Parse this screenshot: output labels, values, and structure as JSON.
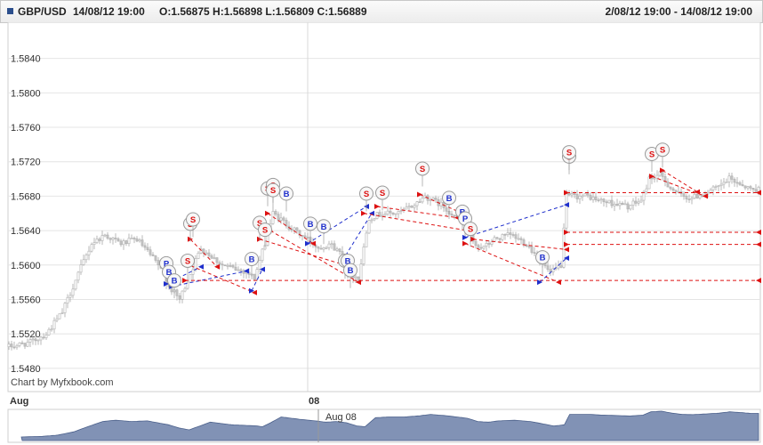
{
  "header": {
    "symbol": "GBP/USD",
    "timestamp": "14/08/12 19:00",
    "ohlc": "O:1.56875 H:1.56898 L:1.56809 C:1.56889",
    "range": "2/08/12 19:00 - 14/08/12 19:00"
  },
  "credit": "Chart by Myfxbook.com",
  "navigator": {
    "label": "Aug 08"
  },
  "colors": {
    "buy": "#1f2fcc",
    "sell": "#dd1111",
    "candle": "#b8b8b8",
    "nav_fill": "#6b7fa8"
  },
  "chart_data": {
    "type": "candlestick",
    "ylim": [
      1.5455,
      1.588
    ],
    "yticks": [
      "1.5480",
      "1.5520",
      "1.5560",
      "1.5600",
      "1.5640",
      "1.5680",
      "1.5720",
      "1.5760",
      "1.5800",
      "1.5840"
    ],
    "ytick_values": [
      1.548,
      1.552,
      1.556,
      1.56,
      1.564,
      1.568,
      1.572,
      1.576,
      1.58,
      1.584
    ],
    "xticks": [
      {
        "label": "Aug",
        "index": 0
      },
      {
        "label": "08",
        "index": 112
      }
    ],
    "count": 282,
    "anchors": [
      [
        0,
        1.5505
      ],
      [
        8,
        1.551
      ],
      [
        14,
        1.552
      ],
      [
        20,
        1.5545
      ],
      [
        26,
        1.559
      ],
      [
        31,
        1.5625
      ],
      [
        36,
        1.5635
      ],
      [
        42,
        1.5625
      ],
      [
        48,
        1.563
      ],
      [
        52,
        1.5615
      ],
      [
        56,
        1.56
      ],
      [
        60,
        1.5575
      ],
      [
        64,
        1.556
      ],
      [
        68,
        1.559
      ],
      [
        72,
        1.562
      ],
      [
        76,
        1.561
      ],
      [
        80,
        1.56
      ],
      [
        85,
        1.5595
      ],
      [
        89,
        1.5592
      ],
      [
        92,
        1.5585
      ],
      [
        95,
        1.5615
      ],
      [
        99,
        1.566
      ],
      [
        103,
        1.565
      ],
      [
        107,
        1.564
      ],
      [
        112,
        1.563
      ],
      [
        116,
        1.562
      ],
      [
        120,
        1.5625
      ],
      [
        124,
        1.5615
      ],
      [
        128,
        1.559
      ],
      [
        131,
        1.5585
      ],
      [
        135,
        1.5655
      ],
      [
        140,
        1.566
      ],
      [
        146,
        1.566
      ],
      [
        152,
        1.567
      ],
      [
        156,
        1.568
      ],
      [
        162,
        1.567
      ],
      [
        166,
        1.566
      ],
      [
        170,
        1.565
      ],
      [
        174,
        1.5625
      ],
      [
        178,
        1.562
      ],
      [
        182,
        1.563
      ],
      [
        188,
        1.5635
      ],
      [
        194,
        1.5625
      ],
      [
        198,
        1.561
      ],
      [
        203,
        1.559
      ],
      [
        207,
        1.56
      ],
      [
        209,
        1.568
      ],
      [
        213,
        1.568
      ],
      [
        217,
        1.568
      ],
      [
        221,
        1.5675
      ],
      [
        226,
        1.5672
      ],
      [
        232,
        1.5668
      ],
      [
        237,
        1.5675
      ],
      [
        240,
        1.57
      ],
      [
        244,
        1.5705
      ],
      [
        248,
        1.569
      ],
      [
        252,
        1.568
      ],
      [
        256,
        1.5678
      ],
      [
        262,
        1.5685
      ],
      [
        266,
        1.569
      ],
      [
        270,
        1.57
      ],
      [
        274,
        1.5695
      ],
      [
        278,
        1.5688
      ],
      [
        281,
        1.5688
      ]
    ],
    "volatility": 0.0009,
    "trades": [
      {
        "side": "B",
        "i0": 61,
        "p0": 1.5575,
        "i1": 89,
        "p1": 1.5593
      },
      {
        "side": "P",
        "i0": 59,
        "p0": 1.5578,
        "i1": 72,
        "p1": 1.5598
      },
      {
        "side": "S",
        "i0": 68,
        "p0": 1.563,
        "i1": 78,
        "p1": 1.5598
      },
      {
        "side": "S",
        "i0": 66,
        "p0": 1.5602,
        "i1": 92,
        "p1": 1.5568
      },
      {
        "side": "S",
        "i0": 66,
        "p0": 1.5582,
        "i1": 281,
        "p1": 1.5582
      },
      {
        "side": "B",
        "i0": 91,
        "p0": 1.557,
        "i1": 95,
        "p1": 1.5595
      },
      {
        "side": "S",
        "i0": 97,
        "p0": 1.566,
        "i1": 114,
        "p1": 1.5625
      },
      {
        "side": "S",
        "i0": 94,
        "p0": 1.563,
        "i1": 128,
        "p1": 1.5598
      },
      {
        "side": "S",
        "i0": 98,
        "p0": 1.564,
        "i1": 131,
        "p1": 1.558
      },
      {
        "side": "B",
        "i0": 112,
        "p0": 1.5625,
        "i1": 134,
        "p1": 1.5668
      },
      {
        "side": "B",
        "i0": 125,
        "p0": 1.5605,
        "i1": 136,
        "p1": 1.566
      },
      {
        "side": "S",
        "i0": 133,
        "p0": 1.566,
        "i1": 172,
        "p1": 1.564
      },
      {
        "side": "S",
        "i0": 138,
        "p0": 1.5668,
        "i1": 168,
        "p1": 1.5655
      },
      {
        "side": "S",
        "i0": 154,
        "p0": 1.5682,
        "i1": 170,
        "p1": 1.566
      },
      {
        "side": "B",
        "i0": 171,
        "p0": 1.5632,
        "i1": 209,
        "p1": 1.567
      },
      {
        "side": "S",
        "i0": 171,
        "p0": 1.5625,
        "i1": 206,
        "p1": 1.558
      },
      {
        "side": "S",
        "i0": 174,
        "p0": 1.563,
        "i1": 209,
        "p1": 1.5618
      },
      {
        "side": "B",
        "i0": 199,
        "p0": 1.558,
        "i1": 209,
        "p1": 1.5608
      },
      {
        "side": "S",
        "i0": 209,
        "p0": 1.5638,
        "i1": 281,
        "p1": 1.5638
      },
      {
        "side": "S",
        "i0": 209,
        "p0": 1.5624,
        "i1": 281,
        "p1": 1.5624
      },
      {
        "side": "S",
        "i0": 209,
        "p0": 1.5684,
        "i1": 281,
        "p1": 1.5684
      },
      {
        "side": "S",
        "i0": 241,
        "p0": 1.5703,
        "i1": 261,
        "p1": 1.568
      },
      {
        "side": "S",
        "i0": 245,
        "p0": 1.571,
        "i1": 258,
        "p1": 1.5685
      }
    ],
    "markers": [
      {
        "side": "P",
        "i": 59,
        "p": 1.5602
      },
      {
        "side": "B",
        "i": 60,
        "p": 1.5592
      },
      {
        "side": "B",
        "i": 62,
        "p": 1.5582
      },
      {
        "side": "S",
        "i": 68,
        "p": 1.5648
      },
      {
        "side": "S",
        "i": 69,
        "p": 1.5653
      },
      {
        "side": "S",
        "i": 67,
        "p": 1.5605
      },
      {
        "side": "B",
        "i": 91,
        "p": 1.5607
      },
      {
        "side": "S",
        "i": 94,
        "p": 1.5649
      },
      {
        "side": "S",
        "i": 96,
        "p": 1.5641
      },
      {
        "side": "S",
        "i": 97,
        "p": 1.5689
      },
      {
        "side": "S",
        "i": 99,
        "p": 1.5693
      },
      {
        "side": "S",
        "i": 99,
        "p": 1.5687
      },
      {
        "side": "B",
        "i": 104,
        "p": 1.5683
      },
      {
        "side": "B",
        "i": 113,
        "p": 1.5648
      },
      {
        "side": "B",
        "i": 118,
        "p": 1.5645
      },
      {
        "side": "S",
        "i": 126,
        "p": 1.5605
      },
      {
        "side": "B",
        "i": 127,
        "p": 1.5605
      },
      {
        "side": "B",
        "i": 128,
        "p": 1.5594
      },
      {
        "side": "S",
        "i": 134,
        "p": 1.5683
      },
      {
        "side": "S",
        "i": 140,
        "p": 1.5684
      },
      {
        "side": "S",
        "i": 155,
        "p": 1.5712
      },
      {
        "side": "B",
        "i": 165,
        "p": 1.5678
      },
      {
        "side": "B",
        "i": 170,
        "p": 1.5662
      },
      {
        "side": "P",
        "i": 171,
        "p": 1.5654
      },
      {
        "side": "S",
        "i": 173,
        "p": 1.5642
      },
      {
        "side": "B",
        "i": 200,
        "p": 1.5609
      },
      {
        "side": "S",
        "i": 210,
        "p": 1.5726
      },
      {
        "side": "S",
        "i": 210,
        "p": 1.5731
      },
      {
        "side": "S",
        "i": 241,
        "p": 1.5729
      },
      {
        "side": "S",
        "i": 245,
        "p": 1.5734
      }
    ]
  }
}
